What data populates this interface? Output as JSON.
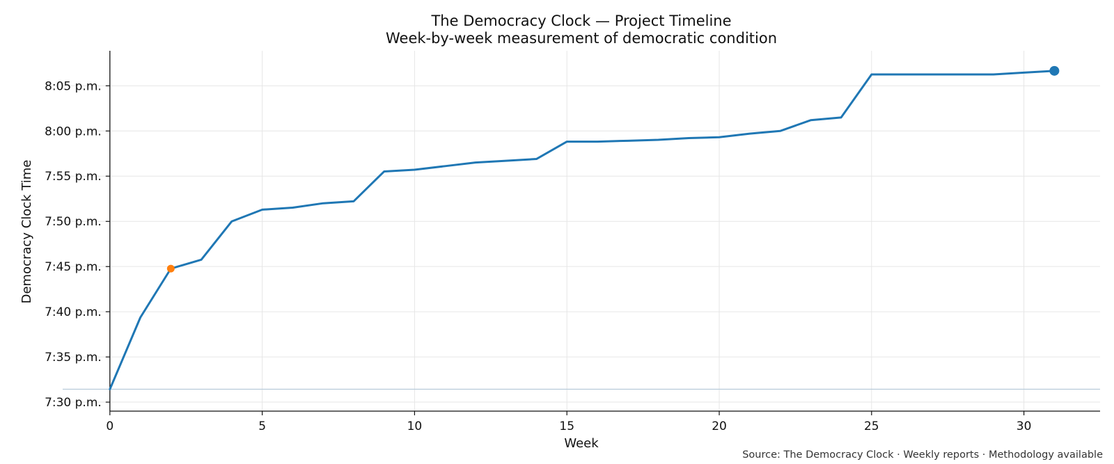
{
  "chart_data": {
    "type": "line",
    "title": "The Democracy Clock — Project Timeline",
    "subtitle": "Week-by-week measurement of democratic condition",
    "xlabel": "Week",
    "ylabel": "Democracy Clock Time",
    "source": "Source: The Democracy Clock · Weekly reports · Methodology available",
    "xlim": [
      -1.55,
      32.5
    ],
    "ylim": [
      7.4834,
      8.1479
    ],
    "x_ticks": [
      0,
      5,
      10,
      15,
      20,
      25,
      30
    ],
    "y_ticks": [
      {
        "value": 7.5,
        "label": "7:30 p.m."
      },
      {
        "value": 7.5833,
        "label": "7:35 p.m."
      },
      {
        "value": 7.6667,
        "label": "7:40 p.m."
      },
      {
        "value": 7.75,
        "label": "7:45 p.m."
      },
      {
        "value": 7.8333,
        "label": "7:50 p.m."
      },
      {
        "value": 7.9167,
        "label": "7:55 p.m."
      },
      {
        "value": 8.0,
        "label": "8:00 p.m."
      },
      {
        "value": 8.0833,
        "label": "8:05 p.m."
      }
    ],
    "grid": true,
    "reference_line_y": 7.5238,
    "series_color": "#1f77b4",
    "highlight_color": "#ff7f0e",
    "series": [
      {
        "x": [
          0,
          1,
          2,
          3,
          4,
          5,
          6,
          7,
          8,
          9,
          10,
          11,
          12,
          13,
          14,
          15,
          16,
          17,
          18,
          19,
          20,
          21,
          22,
          23,
          24,
          25,
          26,
          27,
          28,
          29,
          30,
          31
        ],
        "values": [
          7.5238,
          7.6561,
          7.7462,
          7.7626,
          7.8333,
          7.8549,
          7.8586,
          7.8667,
          7.8703,
          7.9253,
          7.9286,
          7.9352,
          7.9418,
          7.945,
          7.9484,
          7.9804,
          7.9804,
          7.982,
          7.9837,
          7.9869,
          7.9885,
          7.9951,
          8.0,
          8.0199,
          8.0249,
          8.1043,
          8.1043,
          8.1043,
          8.1043,
          8.1043,
          8.1076,
          8.1109
        ]
      }
    ],
    "highlight_points": [
      {
        "x": 2,
        "y": 7.7462,
        "color": "#ff7f0e"
      },
      {
        "x": 31,
        "y": 8.1109,
        "color": "#1f77b4"
      }
    ]
  }
}
